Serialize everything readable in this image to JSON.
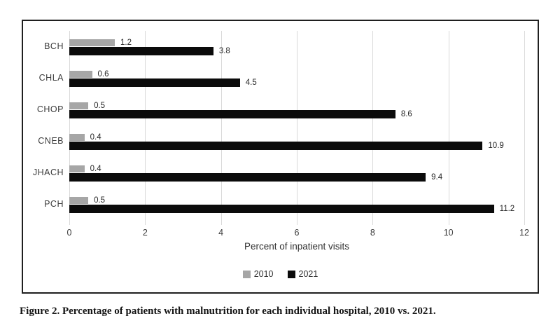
{
  "figure": {
    "caption": "Figure 2.  Percentage of patients with malnutrition for each individual hospital, 2010 vs. 2021."
  },
  "chart_data": {
    "type": "bar",
    "orientation": "horizontal",
    "title": "",
    "categories": [
      "BCH",
      "CHLA",
      "CHOP",
      "CNEB",
      "JHACH",
      "PCH"
    ],
    "series": [
      {
        "name": "2010",
        "color": "#a6a6a6",
        "values": [
          1.2,
          0.6,
          0.5,
          0.4,
          0.4,
          0.5
        ]
      },
      {
        "name": "2021",
        "color": "#0b0b0b",
        "values": [
          3.8,
          4.5,
          8.6,
          10.9,
          9.4,
          11.2
        ]
      }
    ],
    "xlabel": "Percent of inpatient visits",
    "ylabel": "",
    "xlim": [
      0,
      12
    ],
    "xticks": [
      0,
      2,
      4,
      6,
      8,
      10,
      12
    ],
    "grid": "vertical",
    "gridline_color": "#d9d9d9",
    "legend_position": "bottom",
    "value_labels": true
  }
}
